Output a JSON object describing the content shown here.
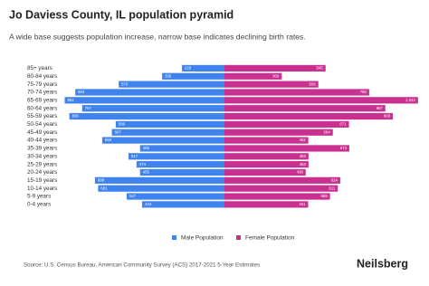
{
  "chart_data": {
    "type": "pyramid",
    "title": "Jo Daviess County, IL population pyramid",
    "subtitle": "A wide base suggests population increase, narrow base indicates declining birth rates.",
    "categories": [
      "85+ years",
      "80-84 years",
      "75-79 years",
      "70-74 years",
      "65-69 years",
      "60-64 years",
      "55-59 years",
      "50-54 years",
      "45-49 years",
      "40-44 years",
      "35-39 years",
      "30-34 years",
      "25-29 years",
      "20-24 years",
      "15-19 years",
      "10-14 years",
      "5-9 years",
      "0-4 years"
    ],
    "series": [
      {
        "name": "Male Population",
        "color": "#3f83ee",
        "values": [
          229,
          336,
          570,
          804,
          861,
          767,
          836,
          586,
          607,
          659,
          455,
          517,
          474,
          455,
          698,
          681,
          527,
          444
        ]
      },
      {
        "name": "Female Population",
        "color": "#c8318f",
        "values": [
          545,
          309,
          506,
          780,
          1043,
          867,
          908,
          671,
          584,
          452,
          673,
          453,
          453,
          438,
          624,
          611,
          569,
          451
        ],
        "value_labels": [
          "545",
          "309",
          "506",
          "780",
          "1,043",
          "867",
          "908",
          "671",
          "584",
          "452",
          "673",
          "453",
          "453",
          "438",
          "624",
          "611",
          "569",
          "451"
        ]
      }
    ],
    "source": "Source: U.S. Census Bureau, American Community Survey (ACS) 2017-2021 5-Year Estimates",
    "brand": "Neilsberg"
  }
}
